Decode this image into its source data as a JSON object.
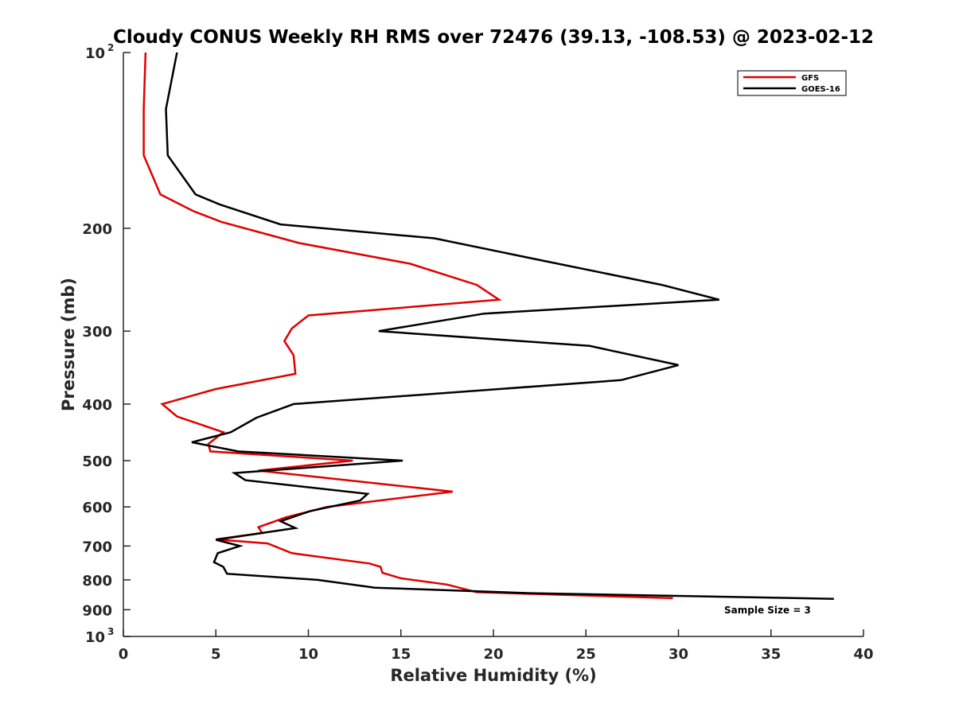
{
  "chart_data": {
    "type": "line",
    "title": "Cloudy CONUS Weekly RH RMS over 72476 (39.13, -108.53) @ 2023-02-12",
    "xlabel": "Relative Humidity (%)",
    "ylabel": "Pressure (mb)",
    "xlim": [
      0,
      40
    ],
    "ylim": [
      100,
      1000
    ],
    "y_scale": "log",
    "y_reversed": true,
    "grid": false,
    "legend_position": "top-right",
    "x_ticks": [
      "0",
      "5",
      "10",
      "15",
      "20",
      "25",
      "30",
      "35",
      "40"
    ],
    "y_ticks": [
      {
        "value": 100,
        "base": "10",
        "exp": "2"
      },
      {
        "value": 200,
        "label": "200"
      },
      {
        "value": 300,
        "label": "300"
      },
      {
        "value": 400,
        "label": "400"
      },
      {
        "value": 500,
        "label": "500"
      },
      {
        "value": 600,
        "label": "600"
      },
      {
        "value": 700,
        "label": "700"
      },
      {
        "value": 800,
        "label": "800"
      },
      {
        "value": 900,
        "label": "900"
      },
      {
        "value": 1000,
        "base": "10",
        "exp": "3"
      }
    ],
    "annotation": "Sample Size = 3",
    "series": [
      {
        "name": "GFS",
        "color": "#e00000",
        "points": [
          [
            1.2,
            100
          ],
          [
            1.1,
            125
          ],
          [
            1.1,
            150
          ],
          [
            2.0,
            175
          ],
          [
            3.8,
            187
          ],
          [
            5.3,
            195
          ],
          [
            9.5,
            212
          ],
          [
            15.5,
            230
          ],
          [
            19.1,
            250
          ],
          [
            20.3,
            265
          ],
          [
            10.0,
            282
          ],
          [
            9.1,
            297
          ],
          [
            8.7,
            312
          ],
          [
            9.2,
            330
          ],
          [
            9.3,
            355
          ],
          [
            5.0,
            377
          ],
          [
            2.1,
            400
          ],
          [
            2.9,
            420
          ],
          [
            5.4,
            447
          ],
          [
            4.6,
            468
          ],
          [
            4.7,
            482
          ],
          [
            12.4,
            500
          ],
          [
            7.3,
            520
          ],
          [
            17.8,
            565
          ],
          [
            11.0,
            600
          ],
          [
            8.8,
            625
          ],
          [
            7.3,
            650
          ],
          [
            7.5,
            665
          ],
          [
            5.0,
            682
          ],
          [
            7.8,
            693
          ],
          [
            9.1,
            720
          ],
          [
            13.3,
            750
          ],
          [
            13.9,
            760
          ],
          [
            14.0,
            778
          ],
          [
            15.0,
            795
          ],
          [
            17.5,
            815
          ],
          [
            19.1,
            840
          ],
          [
            29.7,
            860
          ]
        ]
      },
      {
        "name": "GOES-16",
        "color": "#000000",
        "points": [
          [
            2.9,
            100
          ],
          [
            2.3,
            125
          ],
          [
            2.4,
            150
          ],
          [
            3.9,
            175
          ],
          [
            5.2,
            182
          ],
          [
            8.5,
            197
          ],
          [
            16.8,
            208
          ],
          [
            22.3,
            226
          ],
          [
            29.1,
            250
          ],
          [
            32.2,
            265
          ],
          [
            19.5,
            280
          ],
          [
            13.8,
            300
          ],
          [
            25.2,
            318
          ],
          [
            30.0,
            343
          ],
          [
            26.9,
            364
          ],
          [
            9.2,
            400
          ],
          [
            7.2,
            422
          ],
          [
            5.8,
            447
          ],
          [
            3.7,
            465
          ],
          [
            6.2,
            482
          ],
          [
            15.1,
            500
          ],
          [
            6.0,
            525
          ],
          [
            6.6,
            540
          ],
          [
            13.2,
            570
          ],
          [
            12.8,
            585
          ],
          [
            10.1,
            610
          ],
          [
            8.5,
            635
          ],
          [
            9.3,
            652
          ],
          [
            5.0,
            683
          ],
          [
            6.3,
            700
          ],
          [
            5.1,
            720
          ],
          [
            4.9,
            746
          ],
          [
            5.4,
            760
          ],
          [
            5.6,
            781
          ],
          [
            10.5,
            800
          ],
          [
            13.6,
            825
          ],
          [
            22.0,
            843
          ],
          [
            38.4,
            862
          ]
        ]
      }
    ]
  }
}
